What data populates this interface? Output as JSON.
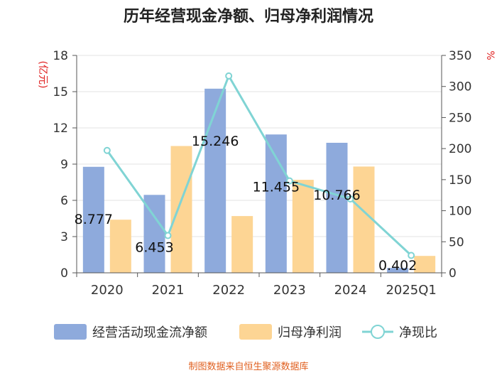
{
  "chart_data": {
    "type": "bar",
    "title": "历年经营现金净额、归母净利润情况",
    "categories": [
      "2020",
      "2021",
      "2022",
      "2023",
      "2024",
      "2025Q1"
    ],
    "left_axis": {
      "unit": "(亿元)",
      "ylim": [
        0,
        18
      ],
      "ticks": [
        0,
        3,
        6,
        9,
        12,
        15,
        18
      ]
    },
    "right_axis": {
      "unit": "%",
      "ylim": [
        0,
        350
      ],
      "ticks": [
        0,
        50,
        100,
        150,
        200,
        250,
        300,
        350
      ]
    },
    "series": [
      {
        "name": "经营活动现金流净额",
        "type": "bar",
        "axis": "left",
        "color": "#8eaadc",
        "values": [
          8.777,
          6.453,
          15.246,
          11.455,
          10.766,
          0.402
        ],
        "labels": [
          "8.777",
          "6.453",
          "15.246",
          "11.455",
          "10.766",
          "0.402"
        ]
      },
      {
        "name": "归母净利润",
        "type": "bar",
        "axis": "left",
        "color": "#fdd594",
        "values": [
          4.4,
          10.5,
          4.7,
          7.7,
          8.8,
          1.4
        ]
      },
      {
        "name": "净现比",
        "type": "line",
        "axis": "right",
        "color": "#80d4d4",
        "values": [
          197,
          60,
          317,
          148,
          119,
          28
        ]
      }
    ],
    "grid": true,
    "legend_position": "bottom"
  },
  "source": "制图数据来自恒生聚源数据库"
}
